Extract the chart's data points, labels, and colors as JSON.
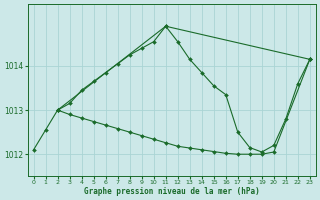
{
  "title": "Graphe pression niveau de la mer (hPa)",
  "background_color": "#cce8e8",
  "line_color": "#1a6b2a",
  "grid_color": "#aad4d4",
  "xlim": [
    -0.5,
    23.5
  ],
  "ylim": [
    1011.5,
    1015.4
  ],
  "yticks": [
    1012,
    1013,
    1014
  ],
  "xticks": [
    0,
    1,
    2,
    3,
    4,
    5,
    6,
    7,
    8,
    9,
    10,
    11,
    12,
    13,
    14,
    15,
    16,
    17,
    18,
    19,
    20,
    21,
    22,
    23
  ],
  "series1_x": [
    0,
    1,
    2,
    3,
    4,
    5,
    6,
    7,
    8,
    9,
    10,
    11,
    12,
    13,
    14,
    15,
    16,
    17,
    18,
    19,
    20,
    21,
    22,
    23
  ],
  "series1_y": [
    1012.1,
    1012.55,
    1013.0,
    1013.15,
    1013.45,
    1013.65,
    1013.85,
    1014.05,
    1014.25,
    1014.4,
    1014.55,
    1014.9,
    1014.55,
    1014.15,
    1013.85,
    1013.55,
    1013.35,
    1012.5,
    1012.15,
    1012.05,
    1012.2,
    1012.8,
    1013.6,
    1014.15
  ],
  "series2_x": [
    2,
    3,
    4,
    5,
    6,
    7,
    8,
    9,
    10,
    11,
    12,
    13,
    14,
    15,
    16,
    17,
    18,
    19,
    20,
    23
  ],
  "series2_y": [
    1013.0,
    1012.9,
    1012.82,
    1012.74,
    1012.66,
    1012.58,
    1012.5,
    1012.42,
    1012.34,
    1012.26,
    1012.18,
    1012.14,
    1012.1,
    1012.06,
    1012.02,
    1012.0,
    1012.0,
    1012.0,
    1012.05,
    1014.15
  ],
  "series3_x": [
    2,
    11,
    23
  ],
  "series3_y": [
    1013.0,
    1014.9,
    1014.15
  ]
}
